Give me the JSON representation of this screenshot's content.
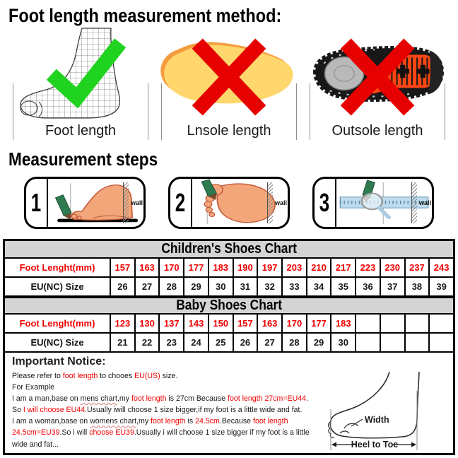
{
  "title": "Foot length measurement method:",
  "methods": {
    "items": [
      {
        "label": "Foot length",
        "mark": "green-check"
      },
      {
        "label": "Lnsole length",
        "mark": "red-cross"
      },
      {
        "label": "Outsole length",
        "mark": "red-cross"
      }
    ]
  },
  "steps": {
    "heading": "Measurement steps",
    "wall_label": "wall",
    "items": [
      {
        "number": "1"
      },
      {
        "number": "2"
      },
      {
        "number": "3"
      }
    ]
  },
  "charts": [
    {
      "title": "Children's Shoes Chart",
      "rows": [
        {
          "label": "Foot Lenght(mm)",
          "values": [
            "157",
            "163",
            "170",
            "177",
            "183",
            "190",
            "197",
            "203",
            "210",
            "217",
            "223",
            "230",
            "237",
            "243"
          ]
        },
        {
          "label": "EU(NC) Size",
          "values": [
            "26",
            "27",
            "28",
            "29",
            "30",
            "31",
            "32",
            "33",
            "34",
            "35",
            "36",
            "37",
            "38",
            "39"
          ]
        }
      ]
    },
    {
      "title": "Baby Shoes Chart",
      "rows": [
        {
          "label": "Foot Lenght(mm)",
          "values": [
            "123",
            "130",
            "137",
            "143",
            "150",
            "157",
            "163",
            "170",
            "177",
            "183",
            "",
            "",
            "",
            ""
          ]
        },
        {
          "label": "EU(NC) Size",
          "values": [
            "21",
            "22",
            "23",
            "24",
            "25",
            "26",
            "27",
            "28",
            "29",
            "30",
            "",
            "",
            "",
            ""
          ]
        }
      ]
    }
  ],
  "notice": {
    "heading": "Important Notice:",
    "lines": [
      [
        {
          "t": "Please refer to "
        },
        {
          "t": "foot length",
          "red": true
        },
        {
          "t": " to chooes "
        },
        {
          "t": "EU(US)",
          "red": true
        },
        {
          "t": " size."
        }
      ],
      [
        {
          "t": "For Example"
        }
      ],
      [
        {
          "t": "I am a man,base on "
        },
        {
          "t": "mens chart",
          "und": true
        },
        {
          "t": ",my "
        },
        {
          "t": "foot length",
          "red": true
        },
        {
          "t": " is 27cm Because "
        },
        {
          "t": "foot length 27cm=EU44",
          "red": true
        },
        {
          "t": "."
        }
      ],
      [
        {
          "t": "So "
        },
        {
          "t": "I will choose EU44",
          "red": true
        },
        {
          "t": ".Usually iwill choose 1 size bigger,if my foot is a little wide and fat."
        }
      ],
      [
        {
          "t": "I am a woman,base on "
        },
        {
          "t": "womens chart",
          "und": true
        },
        {
          "t": ",my "
        },
        {
          "t": "foot length",
          "red": true
        },
        {
          "t": " is "
        },
        {
          "t": "24.5cm",
          "red": true
        },
        {
          "t": ".Because "
        },
        {
          "t": "foot length",
          "red": true
        }
      ],
      [
        {
          "t": "24.5cm=EU39",
          "red": true
        },
        {
          "t": ".So i will "
        },
        {
          "t": "choose EU39",
          "red": true
        },
        {
          "t": ".Usually i will choose 1 size bigger if my foot is a little"
        }
      ],
      [
        {
          "t": "wide and fat..."
        }
      ]
    ],
    "diagram": {
      "width_label": "Width",
      "heel_toe_label": "Heel to Toe"
    }
  },
  "theme": {
    "red_text": "#f10000",
    "green_check": "#1fd31f",
    "red_cross": "#e60000",
    "header_gray": "#d4d4d4",
    "insole_yellow": "#ffd76d",
    "insole_orange": "#f49c3c",
    "outsole_orange": "#ff4612",
    "skin": "#f2a679"
  }
}
